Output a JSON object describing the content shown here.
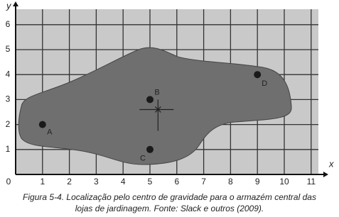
{
  "chart_data": {
    "type": "scatter",
    "x_label": "x",
    "y_label": "y",
    "xlim": [
      0,
      11.5
    ],
    "ylim": [
      0,
      6.4
    ],
    "xticks": [
      0,
      1,
      2,
      3,
      4,
      5,
      6,
      7,
      8,
      9,
      10,
      11
    ],
    "yticks": [
      0,
      1,
      2,
      3,
      4,
      5,
      6
    ],
    "grid": true,
    "series": [
      {
        "color": "#1a1a1a",
        "x": [
          1,
          5,
          5,
          9
        ],
        "values": [
          2,
          3,
          1,
          4
        ],
        "point_labels": [
          "A",
          "B",
          "C",
          "D"
        ]
      }
    ],
    "center": {
      "x": 5.3,
      "y": 2.6
    },
    "caption_lines": [
      "Figura 5-4. Localização pelo centro de gravidade para o armazém central das",
      "lojas de jardinagem. Fonte: Slack e outros (2009)."
    ]
  }
}
